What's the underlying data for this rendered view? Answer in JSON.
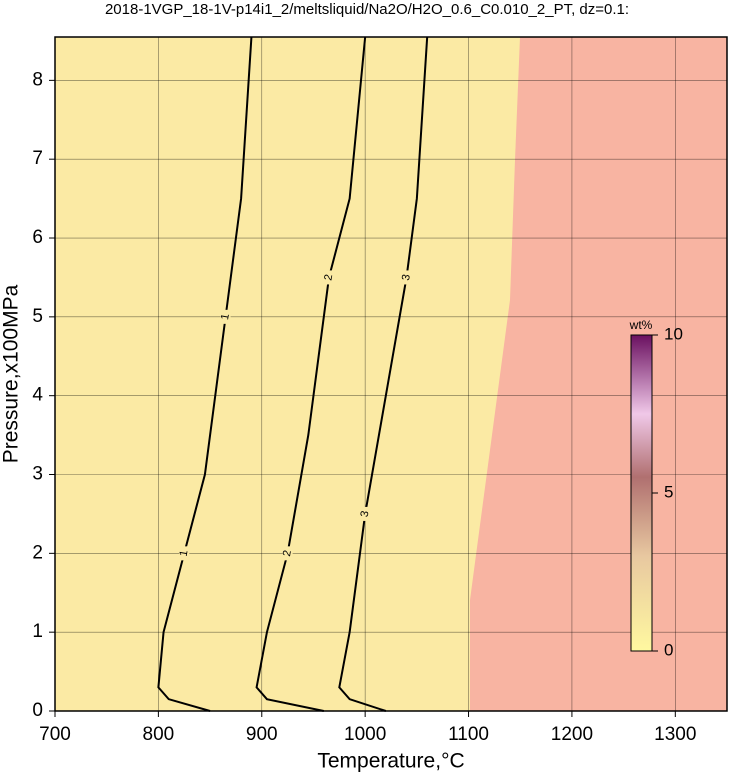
{
  "chart_data": {
    "type": "contour",
    "title": "2018-1VGP_18-1V-p14i1_2/meltsliquid/Na2O/H2O_0.6_C0.010_2_PT, dz=0.1:",
    "x_label": "Temperature,°C",
    "y_label": "Pressure,x100MPa",
    "xlim": [
      700,
      1350
    ],
    "ylim": [
      0,
      8.55
    ],
    "xticks": [
      700,
      800,
      900,
      1000,
      1100,
      1200,
      1300
    ],
    "yticks": [
      0,
      1,
      2,
      3,
      4,
      5,
      6,
      7,
      8
    ],
    "grid": true,
    "contours": [
      {
        "level": 1,
        "x": [
          890,
          880,
          865,
          845,
          825,
          805,
          800,
          810,
          850
        ],
        "y": [
          8.55,
          6.5,
          5,
          3,
          2,
          1,
          0.3,
          0.15,
          0
        ]
      },
      {
        "level": 2,
        "x": [
          1000,
          985,
          965,
          945,
          925,
          905,
          895,
          905,
          960
        ],
        "y": [
          8.55,
          6.5,
          5.5,
          3.5,
          2,
          1,
          0.3,
          0.15,
          0
        ]
      },
      {
        "level": 3,
        "x": [
          1060,
          1050,
          1040,
          1020,
          1000,
          985,
          975,
          985,
          1020
        ],
        "y": [
          8.55,
          6.5,
          5.5,
          4,
          2.5,
          1,
          0.3,
          0.15,
          0
        ]
      }
    ],
    "colorbar": {
      "label": "wt%",
      "lim": [
        0,
        10
      ],
      "ticks": [
        0,
        5,
        10
      ]
    }
  }
}
